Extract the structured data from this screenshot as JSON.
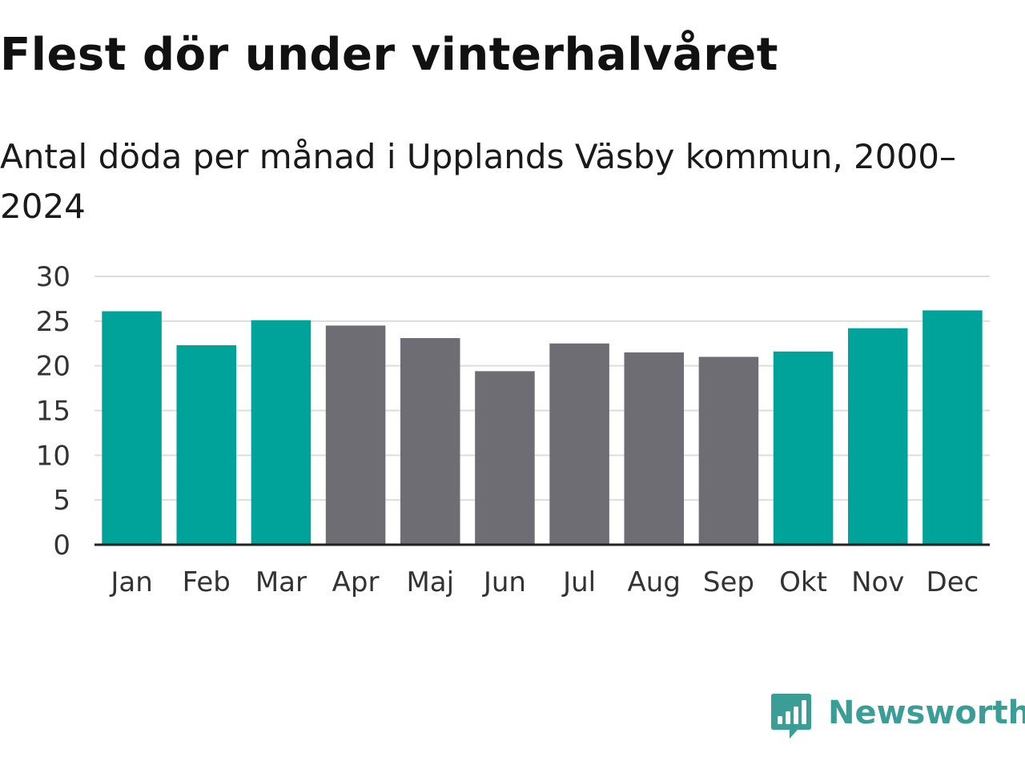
{
  "title": "Flest dör under vinterhalvåret",
  "subtitle": "Antal döda per månad i Upplands Väsby kommun, 2000–2024",
  "brand": {
    "name": "Newsworthy",
    "icon": "newsworthy-logo-icon",
    "color": "#3a9e96"
  },
  "colors": {
    "winter": "#00a39a",
    "summer": "#6d6d73",
    "grid": "#dddddd",
    "axis": "#222222"
  },
  "chart_data": {
    "type": "bar",
    "title": "Flest dör under vinterhalvåret",
    "subtitle": "Antal döda per månad i Upplands Väsby kommun, 2000–2024",
    "xlabel": "",
    "ylabel": "",
    "categories": [
      "Jan",
      "Feb",
      "Mar",
      "Apr",
      "Maj",
      "Jun",
      "Jul",
      "Aug",
      "Sep",
      "Okt",
      "Nov",
      "Dec"
    ],
    "values": [
      26.1,
      22.3,
      25.1,
      24.5,
      23.1,
      19.4,
      22.5,
      21.5,
      21.0,
      21.6,
      24.2,
      26.2
    ],
    "highlight": [
      true,
      true,
      true,
      false,
      false,
      false,
      false,
      false,
      false,
      true,
      true,
      true
    ],
    "ylim": [
      0,
      30
    ],
    "yticks": [
      0,
      5,
      10,
      15,
      20,
      25,
      30
    ],
    "grid": true,
    "legend": "none"
  }
}
